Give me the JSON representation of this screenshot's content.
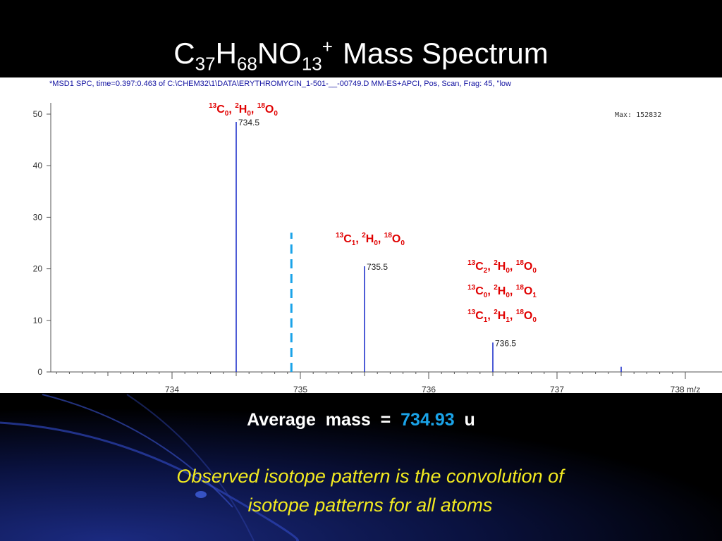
{
  "slide": {
    "title": {
      "c": "C",
      "c_count": "37",
      "h": "H",
      "h_count": "68",
      "no": "NO",
      "o_count": "13",
      "charge": "+",
      "rest": "Mass  Spectrum"
    },
    "average": {
      "label": "Average  mass  =",
      "value": "734.93",
      "unit": "u"
    },
    "note_line1": "Observed isotope pattern is the convolution of",
    "note_line2": "isotope patterns for all atoms",
    "colors": {
      "background": "#000000",
      "accent_blue": "#1aa3e8",
      "note_yellow": "#f2ea20",
      "label_red": "#e00000",
      "peak_blue": "#2233cc"
    }
  },
  "chart_data": {
    "type": "bar",
    "header": "*MSD1 SPC, time=0.397:0.463 of C:\\CHEM32\\1\\DATA\\ERYTHROMYCIN_1-501-__-00749.D     MM-ES+APCI, Pos, Scan, Frag: 45, \"low",
    "max_label": "Max:  152832",
    "xlabel": "m/z",
    "xlim": [
      733.0,
      738.1
    ],
    "ylim": [
      0,
      52
    ],
    "x_ticks": [
      734,
      735,
      736,
      737,
      738
    ],
    "y_ticks": [
      0,
      10,
      20,
      30,
      40,
      50
    ],
    "peaks": [
      {
        "mz": 734.5,
        "intensity": 48.5,
        "label": "734.5"
      },
      {
        "mz": 735.5,
        "intensity": 20.5,
        "label": "735.5"
      },
      {
        "mz": 736.5,
        "intensity": 5.7,
        "label": "736.5"
      },
      {
        "mz": 737.5,
        "intensity": 1.0,
        "label": ""
      }
    ],
    "average_marker": {
      "mz": 734.93,
      "height": 27
    },
    "annotations": [
      {
        "mz": 734.5,
        "lines": [
          [
            [
              "13",
              "C",
              "0"
            ],
            [
              "2",
              "H",
              "0"
            ],
            [
              "18",
              "O",
              "0"
            ]
          ]
        ]
      },
      {
        "mz": 735.5,
        "lines": [
          [
            [
              "13",
              "C",
              "1"
            ],
            [
              "2",
              "H",
              "0"
            ],
            [
              "18",
              "O",
              "0"
            ]
          ]
        ]
      },
      {
        "mz": 736.5,
        "lines": [
          [
            [
              "13",
              "C",
              "2"
            ],
            [
              "2",
              "H",
              "0"
            ],
            [
              "18",
              "O",
              "0"
            ]
          ],
          [
            [
              "13",
              "C",
              "0"
            ],
            [
              "2",
              "H",
              "0"
            ],
            [
              "18",
              "O",
              "1"
            ]
          ],
          [
            [
              "13",
              "C",
              "1"
            ],
            [
              "2",
              "H",
              "1"
            ],
            [
              "18",
              "O",
              "0"
            ]
          ]
        ]
      }
    ]
  }
}
